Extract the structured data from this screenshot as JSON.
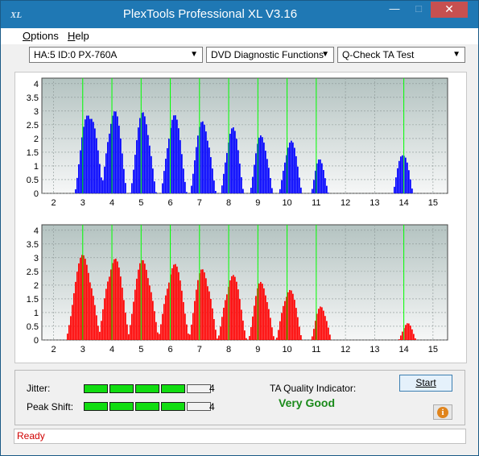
{
  "window": {
    "app_icon": "XL",
    "title": "PlexTools Professional XL V3.16",
    "minimize": "—",
    "maximize": "□",
    "close": "✕"
  },
  "menu": [
    {
      "label": "Options"
    },
    {
      "label": "Help"
    }
  ],
  "toolbar": {
    "drive": "HA:5 ID:0  PX-760A",
    "mode": "DVD Diagnostic Functions",
    "test": "Q-Check TA Test",
    "dropdown_icon": "chevron-down-icon"
  },
  "colors": {
    "top_bars": "#0000ff",
    "bottom_bars": "#ff0000",
    "markers": "#00ff00",
    "plot_bg_top": "#b4c3c1",
    "plot_bg_bottom": "#f6f7f7",
    "accent": "#1f78b4"
  },
  "chart_data": [
    {
      "type": "bar",
      "series": [
        {
          "color": "#0000ff",
          "peaks": [
            {
              "x": 3.2,
              "y": 3.2,
              "w": 0.5
            },
            {
              "x": 4.05,
              "y": 3.15,
              "w": 0.45
            },
            {
              "x": 5.05,
              "y": 3.05,
              "w": 0.45
            },
            {
              "x": 6.1,
              "y": 2.95,
              "w": 0.45
            },
            {
              "x": 7.1,
              "y": 2.75,
              "w": 0.45
            },
            {
              "x": 8.1,
              "y": 2.5,
              "w": 0.4
            },
            {
              "x": 9.1,
              "y": 2.2,
              "w": 0.4
            },
            {
              "x": 10.1,
              "y": 2.0,
              "w": 0.4
            },
            {
              "x": 11.1,
              "y": 1.3,
              "w": 0.3
            },
            {
              "x": 13.95,
              "y": 1.6,
              "w": 0.35
            }
          ]
        }
      ],
      "x_ticks": [
        2,
        3,
        4,
        5,
        6,
        7,
        8,
        9,
        10,
        11,
        12,
        13,
        14,
        15
      ],
      "y_ticks": [
        "0",
        "0.5",
        "1",
        "1.5",
        "2",
        "2.5",
        "3",
        "3.5",
        "4"
      ],
      "xlim": [
        1.6,
        15.5
      ],
      "ylim": [
        0,
        4.2
      ],
      "marker_lines": [
        3,
        4,
        5,
        6,
        7,
        8,
        9,
        10,
        11,
        14
      ],
      "grid": true
    },
    {
      "type": "bar",
      "series": [
        {
          "color": "#ff0000",
          "peaks": [
            {
              "x": 3.0,
              "y": 3.15,
              "w": 0.6
            },
            {
              "x": 4.05,
              "y": 3.1,
              "w": 0.55
            },
            {
              "x": 5.05,
              "y": 3.0,
              "w": 0.55
            },
            {
              "x": 6.1,
              "y": 2.85,
              "w": 0.55
            },
            {
              "x": 7.1,
              "y": 2.7,
              "w": 0.5
            },
            {
              "x": 8.1,
              "y": 2.45,
              "w": 0.5
            },
            {
              "x": 9.1,
              "y": 2.2,
              "w": 0.45
            },
            {
              "x": 10.05,
              "y": 1.95,
              "w": 0.45
            },
            {
              "x": 11.15,
              "y": 1.3,
              "w": 0.35
            },
            {
              "x": 14.1,
              "y": 0.65,
              "w": 0.3
            }
          ]
        }
      ],
      "x_ticks": [
        2,
        3,
        4,
        5,
        6,
        7,
        8,
        9,
        10,
        11,
        12,
        13,
        14,
        15
      ],
      "y_ticks": [
        "0",
        "0.5",
        "1",
        "1.5",
        "2",
        "2.5",
        "3",
        "3.5",
        "4"
      ],
      "xlim": [
        1.6,
        15.5
      ],
      "ylim": [
        0,
        4.2
      ],
      "marker_lines": [
        3,
        4,
        5,
        6,
        7,
        8,
        9,
        10,
        11,
        14
      ],
      "grid": true
    }
  ],
  "metrics": {
    "jitter": {
      "label": "Jitter:",
      "value": "4",
      "level": 4,
      "max": 5
    },
    "peak_shift": {
      "label": "Peak Shift:",
      "value": "4",
      "level": 4,
      "max": 5
    }
  },
  "ta_quality": {
    "label": "TA Quality Indicator:",
    "value": "Very Good"
  },
  "buttons": {
    "start": "Start",
    "info": "i"
  },
  "status": "Ready"
}
